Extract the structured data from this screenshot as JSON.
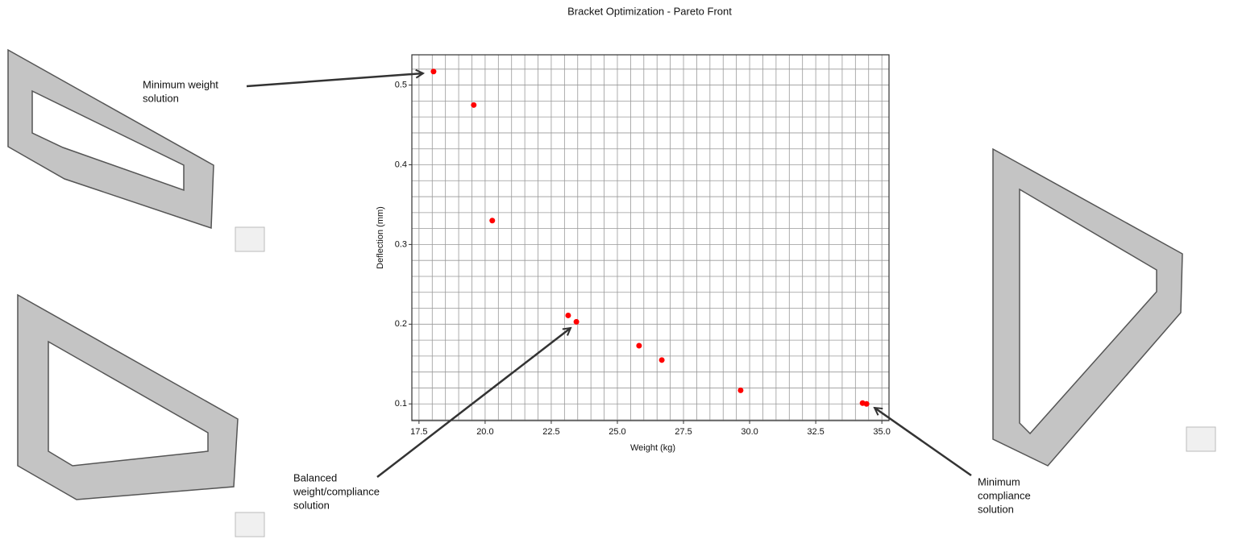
{
  "chart_data": {
    "type": "scatter",
    "title": "Bracket Optimization - Pareto Front",
    "x_label": "Weight (kg)",
    "y_label": "Deflection (mm)",
    "x": [
      18.05,
      19.57,
      20.27,
      23.14,
      23.45,
      25.82,
      26.68,
      29.66,
      34.27,
      34.42
    ],
    "values": [
      0.517,
      0.475,
      0.33,
      0.211,
      0.203,
      0.173,
      0.155,
      0.117,
      0.101,
      0.1
    ],
    "color": "#ff0000",
    "xlim": [
      17.23,
      35.27
    ],
    "ylim": [
      0.079,
      0.538
    ],
    "xticks": [
      {
        "value": 17.5,
        "label": "17.5"
      },
      {
        "value": 20,
        "label": "20.0"
      },
      {
        "value": 22.5,
        "label": "22.5"
      },
      {
        "value": 25,
        "label": "25.0"
      },
      {
        "value": 27.5,
        "label": "27.5"
      },
      {
        "value": 30,
        "label": "30.0"
      },
      {
        "value": 32.5,
        "label": "32.5"
      },
      {
        "value": 35,
        "label": "35.0"
      }
    ],
    "yticks": [
      0.1,
      0.2,
      0.3,
      0.4,
      0.5
    ],
    "grid": true,
    "minor_grid_step": {
      "x": 0.5,
      "y": 0.02
    },
    "annotations": [
      [
        "Minimum weight",
        "solution"
      ],
      [
        "Balanced",
        "weight/compliance",
        "solution"
      ],
      [
        "Minimum",
        "compliance",
        "solution"
      ]
    ]
  }
}
